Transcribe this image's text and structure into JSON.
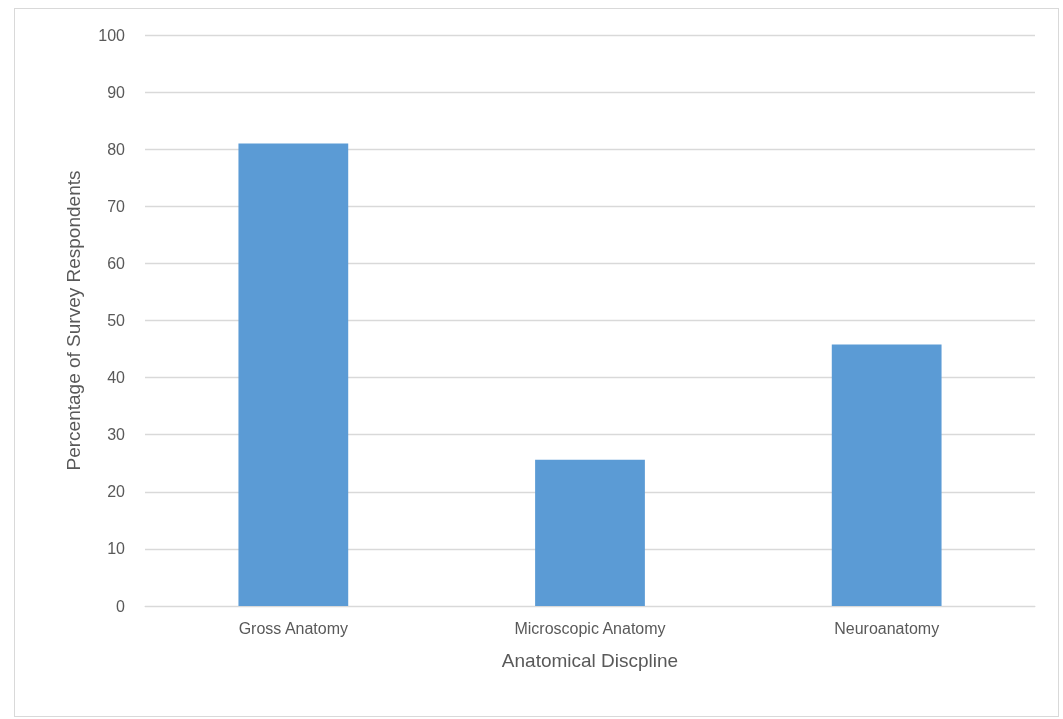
{
  "chart_data": {
    "type": "bar",
    "xlabel": "Anatomical Discpline",
    "ylabel": "Percentage of Survey Respondents",
    "categories": [
      "Gross Anatomy",
      "Microscopic Anatomy",
      "Neuroanatomy"
    ],
    "values": [
      81,
      25.6,
      45.8
    ],
    "color": "#5b9bd5",
    "ylim": [
      0,
      100
    ],
    "yticks": [
      0,
      10,
      20,
      30,
      40,
      50,
      60,
      70,
      80,
      90,
      100
    ],
    "grid": "y"
  }
}
